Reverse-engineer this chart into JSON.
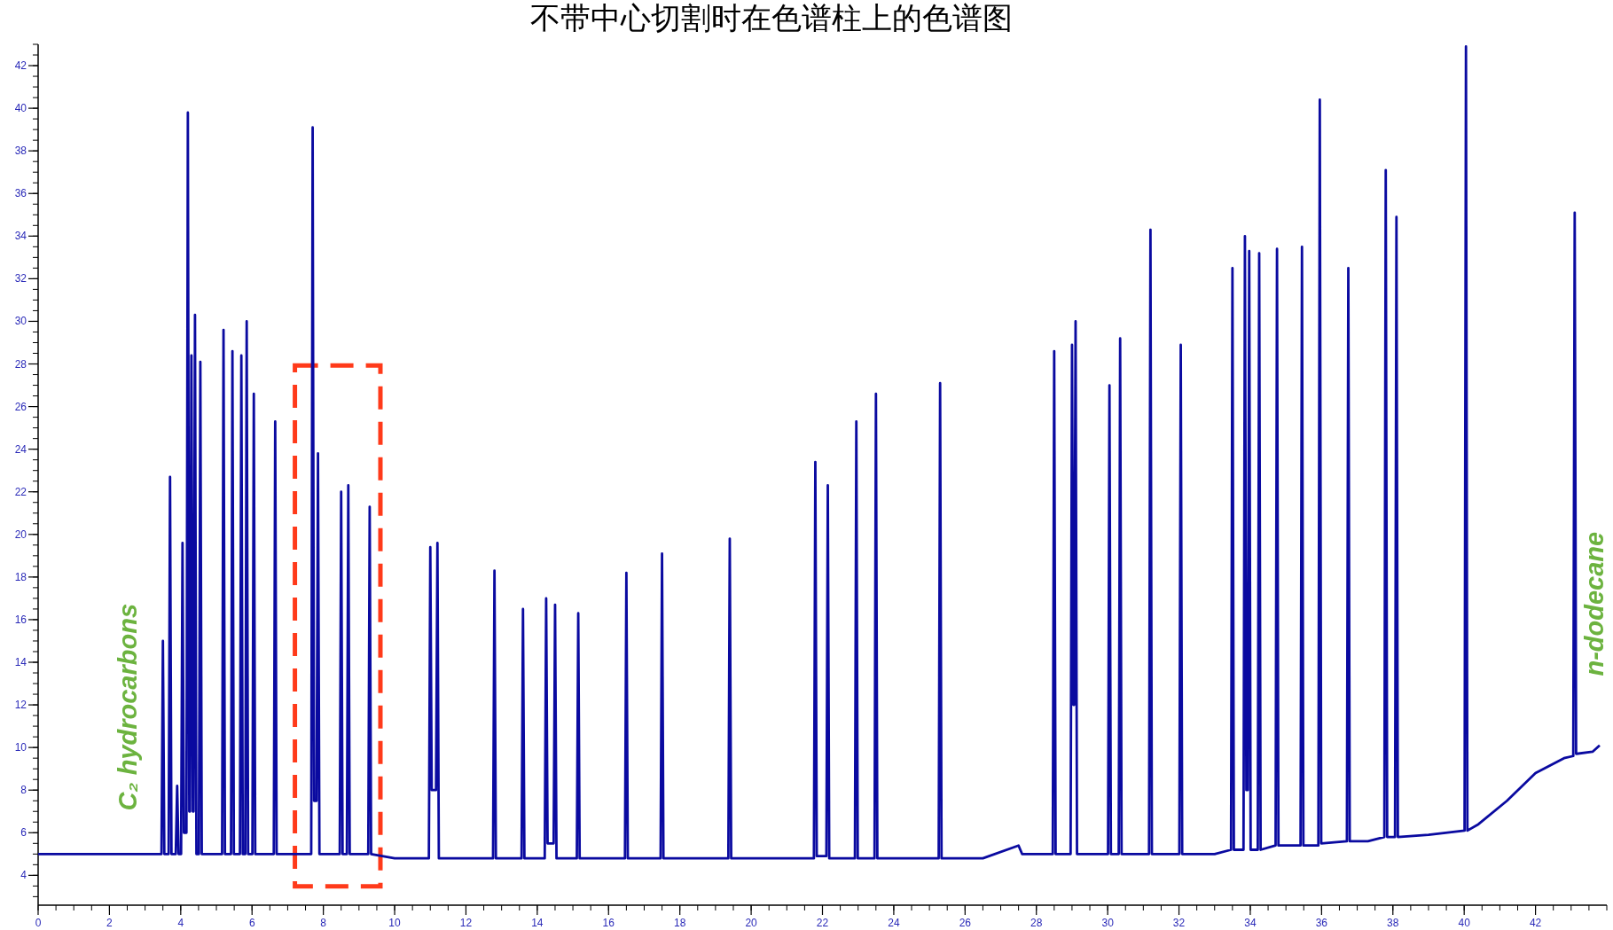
{
  "chart_data": {
    "type": "line",
    "title": "不带中心切割时在色谱柱上的色谱图",
    "series": [
      {
        "color": "#0a0aa0",
        "x": [
          0,
          3.4,
          3.46,
          3.5,
          3.54,
          3.66,
          3.7,
          3.74,
          3.86,
          3.9,
          3.94,
          4.01,
          4.05,
          4.09,
          4.16,
          4.2,
          4.24,
          4.26,
          4.3,
          4.34,
          4.36,
          4.4,
          4.44,
          4.51,
          4.55,
          4.59,
          5.16,
          5.2,
          5.24,
          5.41,
          5.45,
          5.49,
          5.66,
          5.7,
          5.74,
          5.81,
          5.85,
          5.89,
          6.01,
          6.05,
          6.09,
          6.61,
          6.65,
          6.69,
          7.66,
          7.7,
          7.74,
          7.81,
          7.85,
          7.89,
          8.46,
          8.5,
          8.54,
          8.66,
          8.7,
          8.74,
          9.26,
          9.3,
          9.34,
          10.0,
          10.96,
          11.0,
          11.04,
          11.16,
          11.2,
          11.24,
          12.76,
          12.8,
          12.84,
          13.56,
          13.6,
          13.64,
          14.21,
          14.25,
          14.29,
          14.46,
          14.5,
          14.54,
          15.11,
          15.15,
          15.19,
          16.46,
          16.5,
          16.54,
          17.46,
          17.5,
          17.54,
          19.36,
          19.4,
          19.44,
          20.5,
          21.76,
          21.8,
          21.84,
          22.11,
          22.15,
          22.19,
          22.91,
          22.95,
          22.99,
          23.46,
          23.5,
          23.54,
          25.26,
          25.3,
          25.34,
          26.5,
          27.5,
          27.6,
          28.46,
          28.5,
          28.54,
          28.96,
          29.0,
          29.04,
          29.06,
          29.1,
          29.14,
          30.01,
          30.05,
          30.09,
          30.31,
          30.35,
          30.39,
          31.16,
          31.2,
          31.24,
          32.01,
          32.05,
          32.09,
          33.0,
          33.46,
          33.5,
          33.54,
          33.81,
          33.85,
          33.89,
          33.93,
          33.97,
          34.01,
          34.21,
          34.25,
          34.29,
          34.71,
          34.75,
          34.79,
          35.41,
          35.45,
          35.49,
          35.91,
          35.95,
          35.99,
          36.71,
          36.75,
          36.79,
          37.3,
          37.76,
          37.8,
          37.84,
          38.06,
          38.1,
          38.14,
          39.0,
          40.01,
          40.05,
          40.09,
          40.4,
          41.2,
          42.0,
          42.8,
          43.06,
          43.1,
          43.14,
          43.6,
          43.8
        ],
        "values": [
          5.0,
          5.0,
          5.0,
          15.0,
          5.0,
          5.0,
          22.7,
          5.0,
          5.0,
          8.2,
          5.0,
          5.0,
          19.6,
          6.0,
          6.0,
          39.8,
          7.0,
          7.0,
          28.4,
          7.0,
          7.0,
          30.3,
          5.0,
          5.0,
          28.1,
          5.0,
          5.0,
          29.6,
          5.0,
          5.0,
          28.6,
          5.0,
          5.0,
          28.4,
          5.0,
          5.0,
          30.0,
          5.0,
          5.0,
          26.6,
          5.0,
          5.0,
          25.3,
          5.0,
          5.0,
          39.1,
          7.5,
          7.5,
          23.8,
          5.0,
          5.0,
          22.0,
          5.0,
          5.0,
          22.3,
          5.0,
          5.0,
          21.3,
          5.0,
          4.8,
          4.8,
          19.4,
          8.0,
          8.0,
          19.6,
          4.8,
          4.8,
          18.3,
          4.8,
          4.8,
          16.5,
          4.8,
          4.8,
          17.0,
          5.5,
          5.5,
          16.7,
          4.8,
          4.8,
          16.3,
          4.8,
          4.8,
          18.2,
          4.8,
          4.8,
          19.1,
          4.8,
          4.8,
          19.8,
          4.8,
          4.8,
          4.8,
          23.4,
          4.9,
          4.9,
          22.3,
          4.8,
          4.8,
          25.3,
          4.8,
          4.8,
          26.6,
          4.8,
          4.8,
          27.1,
          4.8,
          4.8,
          5.4,
          5.0,
          5.0,
          28.6,
          5.0,
          5.0,
          28.9,
          12.0,
          12.0,
          30.0,
          5.0,
          5.0,
          27.0,
          5.0,
          5.0,
          29.2,
          5.0,
          5.0,
          34.3,
          5.0,
          5.0,
          28.9,
          5.0,
          5.0,
          5.2,
          32.5,
          5.2,
          5.2,
          34.0,
          8.0,
          8.0,
          33.3,
          5.2,
          5.2,
          33.2,
          5.2,
          5.4,
          33.4,
          5.4,
          5.4,
          33.5,
          5.4,
          5.4,
          40.4,
          5.5,
          5.6,
          32.5,
          5.6,
          5.6,
          5.8,
          37.1,
          5.8,
          5.8,
          34.9,
          5.8,
          5.9,
          6.1,
          42.9,
          6.1,
          6.4,
          7.5,
          8.8,
          9.5,
          9.6,
          35.1,
          9.7,
          9.8,
          10.1
        ]
      }
    ],
    "xlim": [
      0,
      44.0
    ],
    "ylim": [
      2.6,
      43.0
    ],
    "xticks": [
      0,
      2,
      4,
      6,
      8,
      10,
      12,
      14,
      16,
      18,
      20,
      22,
      24,
      26,
      28,
      30,
      32,
      34,
      36,
      38,
      40,
      42
    ],
    "yticks": [
      4,
      6,
      8,
      10,
      12,
      14,
      16,
      18,
      20,
      22,
      24,
      26,
      28,
      30,
      32,
      34,
      36,
      38,
      40,
      42
    ],
    "grid": false,
    "annotations": [
      "C₂ hydrocarbons",
      "n-dodecane"
    ]
  }
}
